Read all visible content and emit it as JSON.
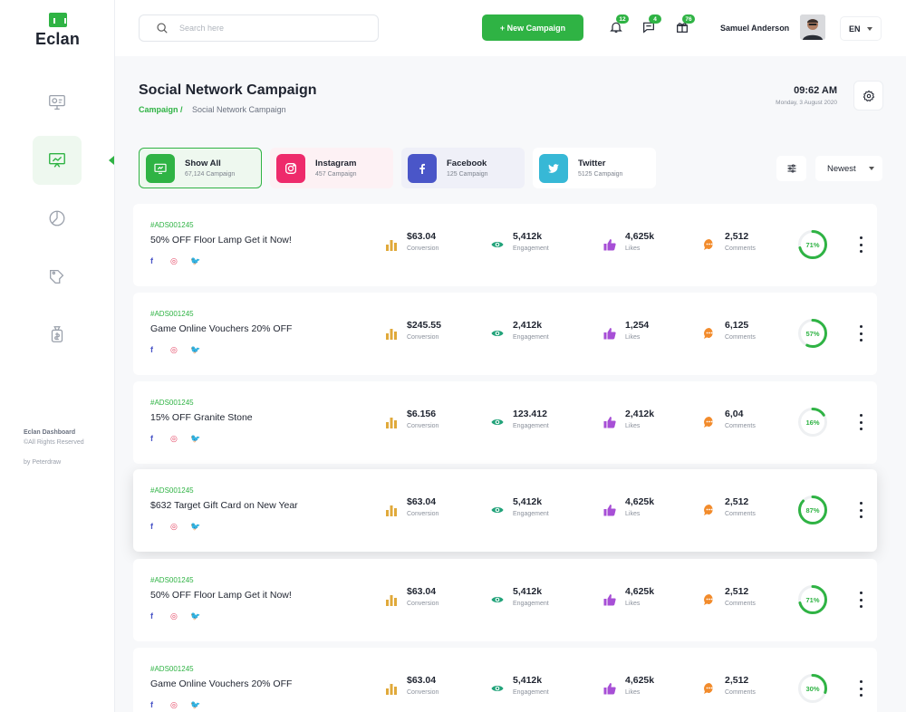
{
  "brand": {
    "name": "Eclan"
  },
  "sidebar": {
    "items": [
      {
        "icon": "monitor-dashboard-icon"
      },
      {
        "icon": "presentation-chart-icon",
        "active": true
      },
      {
        "icon": "pie-chart-icon"
      },
      {
        "icon": "tag-icon"
      },
      {
        "icon": "money-bag-icon"
      }
    ],
    "footer": {
      "line1": "Eclan Dashboard",
      "line2": "©All Rights Reserved",
      "line3": "by Peterdraw"
    }
  },
  "header": {
    "search_placeholder": "Search here",
    "new_campaign_label": "+ New Campaign",
    "notifications_count": "12",
    "messages_count": "4",
    "gifts_count": "76",
    "user_name": "Samuel Anderson",
    "language": "EN"
  },
  "page": {
    "title": "Social Network Campaign",
    "breadcrumb": {
      "parent": "Campaign /",
      "current": "Social Network Campaign"
    },
    "time": "09:62 AM",
    "date": "Monday, 3 August 2020"
  },
  "filters": [
    {
      "name": "Show All",
      "count": "67,124 Campaign",
      "color": "#2fb344",
      "bg": "#eef8ef",
      "active": true
    },
    {
      "name": "Instagram",
      "count": "457 Campaign",
      "color": "#ee2a6b",
      "bg": "#fdf1f4"
    },
    {
      "name": "Facebook",
      "count": "125 Campaign",
      "color": "#4a56c8",
      "bg": "#eff0f8"
    },
    {
      "name": "Twitter",
      "count": "5125 Campaign",
      "color": "#37b8d6",
      "bg": "#ffffff"
    }
  ],
  "sort": {
    "selected": "Newest"
  },
  "metric_labels": {
    "conversion": "Conversion",
    "engagement": "Engagement",
    "likes": "Likes",
    "comments": "Comments"
  },
  "social_glyphs": {
    "facebook": "f",
    "instagram": "◎",
    "twitter": "🐦"
  },
  "campaigns": [
    {
      "code": "#ADS001245",
      "title": "50% OFF Floor Lamp Get it Now!",
      "conversion": "$63.04",
      "engagement": "5,412k",
      "likes": "4,625k",
      "comments": "2,512",
      "progress": "71%",
      "progress_value": 0.71
    },
    {
      "code": "#ADS001245",
      "title": "Game Online Vouchers 20% OFF",
      "conversion": "$245.55",
      "engagement": "2,412k",
      "likes": "1,254",
      "comments": "6,125",
      "progress": "57%",
      "progress_value": 0.57
    },
    {
      "code": "#ADS001245",
      "title": "15% OFF Granite Stone",
      "conversion": "$6.156",
      "engagement": "123.412",
      "likes": "2,412k",
      "comments": "6,04",
      "progress": "16%",
      "progress_value": 0.16
    },
    {
      "code": "#ADS001245",
      "title": "$632 Target Gift Card on New Year",
      "conversion": "$63.04",
      "engagement": "5,412k",
      "likes": "4,625k",
      "comments": "2,512",
      "progress": "87%",
      "progress_value": 0.87,
      "highlighted": true
    },
    {
      "code": "#ADS001245",
      "title": "50% OFF Floor Lamp Get it Now!",
      "conversion": "$63.04",
      "engagement": "5,412k",
      "likes": "4,625k",
      "comments": "2,512",
      "progress": "71%",
      "progress_value": 0.71
    },
    {
      "code": "#ADS001245",
      "title": "Game Online Vouchers 20% OFF",
      "conversion": "$63.04",
      "engagement": "5,412k",
      "likes": "4,625k",
      "comments": "2,512",
      "progress": "30%",
      "progress_value": 0.3
    }
  ],
  "colors": {
    "accent": "#2fb344",
    "conversion": "#e0a93a",
    "engagement": "#22a37a",
    "likes": "#a74fd6",
    "comments": "#f28b2b"
  }
}
